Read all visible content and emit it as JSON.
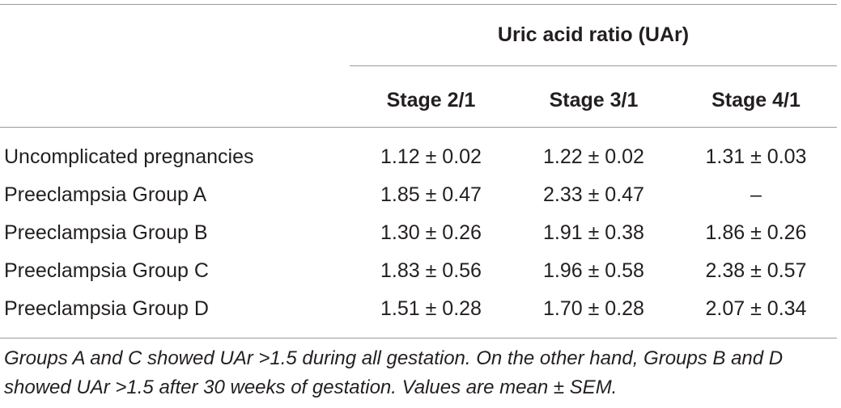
{
  "table": {
    "group_header": "Uric acid ratio (UAr)",
    "columns": [
      "Stage 2/1",
      "Stage 3/1",
      "Stage 4/1"
    ],
    "rows": [
      {
        "label": "Uncomplicated pregnancies",
        "values": [
          "1.12 ± 0.02",
          "1.22 ± 0.02",
          "1.31 ± 0.03"
        ]
      },
      {
        "label": "Preeclampsia Group A",
        "values": [
          "1.85 ± 0.47",
          "2.33 ± 0.47",
          "–"
        ]
      },
      {
        "label": "Preeclampsia Group B",
        "values": [
          "1.30 ± 0.26",
          "1.91 ± 0.38",
          "1.86 ± 0.26"
        ]
      },
      {
        "label": "Preeclampsia Group C",
        "values": [
          "1.83 ± 0.56",
          "1.96 ± 0.58",
          "2.38 ± 0.57"
        ]
      },
      {
        "label": "Preeclampsia Group D",
        "values": [
          "1.51 ± 0.28",
          "1.70 ± 0.28",
          "2.07 ± 0.34"
        ]
      }
    ],
    "footnote": "Groups A and C showed UAr >1.5 during all gestation. On the other hand, Groups B and D showed UAr >1.5 after 30 weeks of gestation. Values are mean ± SEM."
  }
}
